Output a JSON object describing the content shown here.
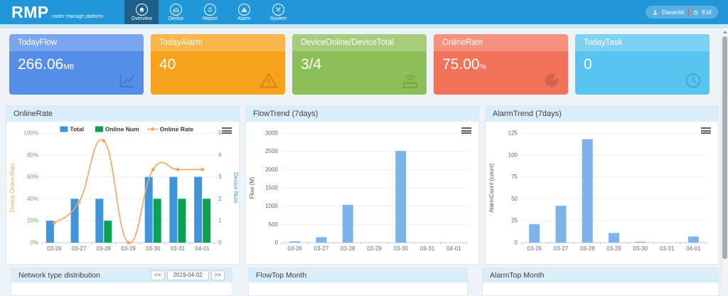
{
  "header": {
    "logo": "RMP",
    "logo_subtitle": "router manage platform",
    "nav": [
      {
        "label": "Overview",
        "icon": "home-icon",
        "active": true
      },
      {
        "label": "Device",
        "icon": "router-icon",
        "active": false
      },
      {
        "label": "Report",
        "icon": "report-icon",
        "active": false
      },
      {
        "label": "Alarm",
        "icon": "alarm-icon",
        "active": false
      },
      {
        "label": "System",
        "icon": "system-icon",
        "active": false
      }
    ],
    "user": {
      "name": "Davantel",
      "exit_label": "Exit"
    }
  },
  "cards": [
    {
      "title": "TodayFlow",
      "value": "266.06",
      "unit": "MB",
      "color": "#548ee9",
      "icon": "line-chart-icon"
    },
    {
      "title": "TodayAlarm",
      "value": "40",
      "unit": "",
      "color": "#f7a21c",
      "icon": "warning-icon"
    },
    {
      "title": "DeviceOnline/DeviceTotal",
      "value": "3/4",
      "unit": "",
      "color": "#8cbf57",
      "icon": "router-signal-icon"
    },
    {
      "title": "OnlineRate",
      "value": "75.00",
      "unit": "%",
      "color": "#f3735a",
      "icon": "pie-chart-icon"
    },
    {
      "title": "TodayTask",
      "value": "0",
      "unit": "",
      "color": "#58c5f1",
      "icon": "clock-icon"
    }
  ],
  "panels": [
    {
      "title": "OnlineRate"
    },
    {
      "title": "FlowTrend (7days)"
    },
    {
      "title": "AlarmTrend (7days)"
    }
  ],
  "bottom_panels": {
    "network": {
      "title": "Network type distribution",
      "prev_label": "<<",
      "date": "2019-04-02",
      "next_label": ">>"
    },
    "flow_top": {
      "title": "FlowTop Month"
    },
    "alarm_top": {
      "title": "AlarmTop Month"
    }
  },
  "chart_data": [
    {
      "type": "mixed-bar-line",
      "title": "OnlineRate",
      "categories": [
        "03-26",
        "03-27",
        "03-28",
        "03-29",
        "03-30",
        "03-31",
        "04-01"
      ],
      "legend_position": "top",
      "left_axis": {
        "title": "Device Online Rate",
        "min": 0,
        "max": 100,
        "step": 20,
        "suffix": "%",
        "tick_color": "#6fae4e",
        "title_color": "#f9a45e"
      },
      "right_axis": {
        "title": "Device Num",
        "min": 0,
        "max": 5,
        "step": 1,
        "suffix": "",
        "tick_color": "#3d96dc",
        "title_color": "#3d96dc"
      },
      "series": [
        {
          "name": "Total",
          "type": "bar",
          "axis": "right",
          "color": "#3d96dc",
          "values": [
            1,
            2,
            2,
            0,
            3,
            3,
            3
          ]
        },
        {
          "name": "Online Num",
          "type": "bar",
          "axis": "right",
          "color": "#0aa152",
          "values": [
            0,
            0,
            1,
            0,
            2,
            2,
            2
          ]
        },
        {
          "name": "Online Rate",
          "type": "line",
          "axis": "left",
          "color": "#f9a45e",
          "values": [
            18,
            37,
            93,
            0,
            66.7,
            66.7,
            66.7
          ]
        }
      ]
    },
    {
      "type": "bar",
      "title": "FlowTrend (7days)",
      "categories": [
        "03-26",
        "03-27",
        "03-28",
        "03-29",
        "03-30",
        "03-31",
        "04-01"
      ],
      "left_axis": {
        "title": "Flow (M)",
        "min": 0,
        "max": 3000,
        "step": 500,
        "suffix": "",
        "tick_color": "#666666",
        "title_color": "#555555"
      },
      "series": [
        {
          "name": "Flow",
          "type": "bar",
          "axis": "left",
          "color": "#7db3e8",
          "values": [
            35,
            148,
            1035,
            0,
            2510,
            0,
            0
          ]
        }
      ]
    },
    {
      "type": "bar",
      "title": "AlarmTrend (7days)",
      "categories": [
        "03-26",
        "03-27",
        "03-28",
        "03-29",
        "03-30",
        "03-31",
        "04-01"
      ],
      "left_axis": {
        "title": "AlarmCount (count)",
        "min": 0,
        "max": 125,
        "step": 25,
        "suffix": "",
        "tick_color": "#666666",
        "title_color": "#555555"
      },
      "series": [
        {
          "name": "AlarmCount",
          "type": "bar",
          "axis": "left",
          "color": "#7db3e8",
          "values": [
            21,
            42,
            118,
            11,
            1,
            0,
            7
          ]
        }
      ]
    }
  ]
}
